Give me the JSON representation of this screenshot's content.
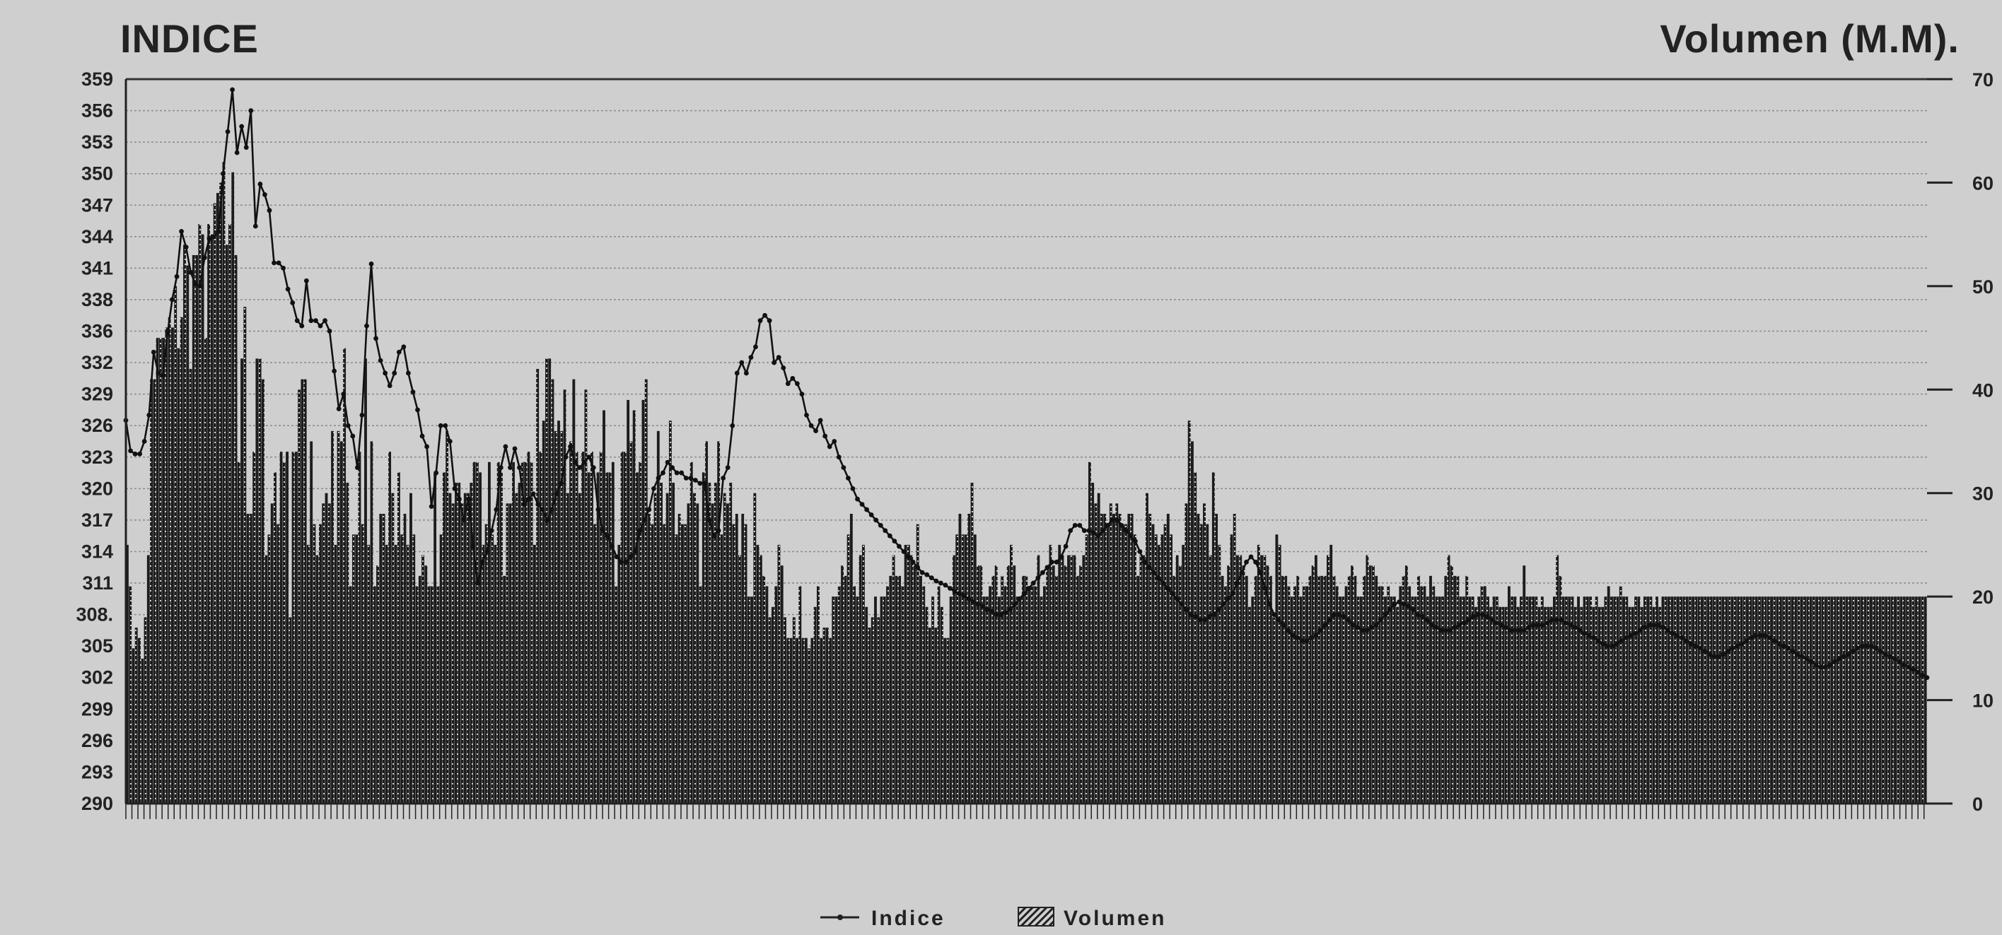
{
  "chart_data": {
    "type": "bar",
    "title_left": "INDICE",
    "title_right": "Volumen (M.M).",
    "left_axis": {
      "ylim": [
        290,
        359
      ],
      "ticks": [
        "290",
        "293",
        "296",
        "299",
        "302",
        "305",
        "308.",
        "311",
        "314",
        "317",
        "320",
        "323",
        "326",
        "329",
        "332",
        "336",
        "338",
        "341",
        "344",
        "347",
        "350",
        "353",
        "356",
        "359"
      ]
    },
    "right_axis": {
      "ylim": [
        0,
        70
      ],
      "ticks": [
        "0",
        "10",
        "20",
        "30",
        "40",
        "50",
        "60",
        "70"
      ]
    },
    "grid": true,
    "legend": {
      "placement": "bottom-center",
      "line_label": "Indice",
      "bar_label": "Volumen"
    },
    "series": [
      {
        "name": "Volumen",
        "kind": "bar",
        "axis": "right",
        "values": [
          25,
          21,
          15,
          17,
          16,
          14,
          18,
          24,
          41,
          41,
          45,
          45,
          45,
          46,
          47,
          46,
          50,
          44,
          47,
          54,
          52,
          42,
          53,
          53,
          56,
          55,
          45,
          56,
          55,
          58,
          59,
          60,
          62,
          54,
          56,
          61,
          53,
          33,
          43,
          48,
          28,
          28,
          34,
          43,
          43,
          41,
          24,
          26,
          29,
          32,
          27,
          34,
          33,
          34,
          18,
          34,
          34,
          40,
          41,
          41,
          25,
          35,
          27,
          24,
          27,
          29,
          30,
          29,
          36,
          25,
          36,
          35,
          44,
          31,
          21,
          26,
          26,
          34,
          27,
          43,
          25,
          35,
          21,
          23,
          28,
          28,
          25,
          34,
          30,
          25,
          32,
          26,
          28,
          25,
          30,
          26,
          21,
          22,
          24,
          23,
          21,
          21,
          32,
          21,
          26,
          32,
          36,
          30,
          29,
          31,
          31,
          29,
          30,
          30,
          31,
          33,
          33,
          32,
          25,
          27,
          33,
          26,
          25,
          33,
          32,
          22,
          29,
          29,
          33,
          30,
          31,
          33,
          33,
          34,
          33,
          25,
          42,
          34,
          37,
          43,
          43,
          41,
          36,
          37,
          36,
          40,
          30,
          35,
          41,
          34,
          30,
          34,
          40,
          32,
          34,
          27,
          32,
          34,
          38,
          32,
          32,
          33,
          21,
          25,
          34,
          34,
          39,
          35,
          38,
          32,
          33,
          39,
          41,
          28,
          27,
          30,
          36,
          31,
          27,
          30,
          37,
          31,
          26,
          28,
          27,
          27,
          29,
          33,
          30,
          29,
          21,
          32,
          35,
          31,
          29,
          31,
          35,
          26,
          30,
          29,
          31,
          27,
          28,
          24,
          28,
          27,
          20,
          20,
          30,
          25,
          24,
          22,
          21,
          18,
          19,
          21,
          25,
          23,
          18,
          16,
          16,
          18,
          16,
          21,
          16,
          16,
          15,
          16,
          19,
          21,
          16,
          17,
          17,
          16,
          20,
          20,
          21,
          23,
          22,
          26,
          28,
          21,
          20,
          24,
          25,
          19,
          17,
          18,
          20,
          18,
          20,
          20,
          21,
          22,
          24,
          22,
          22,
          21,
          25,
          25,
          24,
          23,
          27,
          22,
          21,
          19,
          17,
          20,
          17,
          21,
          19,
          16,
          16,
          20,
          24,
          26,
          28,
          26,
          26,
          28,
          31,
          26,
          23,
          23,
          20,
          20,
          21,
          22,
          23,
          20,
          22,
          21,
          23,
          25,
          23,
          20,
          20,
          22,
          22,
          21,
          21,
          21,
          24,
          20,
          21,
          23,
          25,
          23,
          22,
          25,
          24,
          23,
          24,
          24,
          24,
          22,
          23,
          24,
          26,
          33,
          31,
          29,
          30,
          28,
          28,
          27,
          29,
          28,
          29,
          28,
          27,
          27,
          28,
          28,
          26,
          22,
          24,
          24,
          30,
          28,
          27,
          26,
          25,
          26,
          27,
          28,
          26,
          22,
          24,
          23,
          25,
          29,
          37,
          35,
          32,
          28,
          27,
          29,
          27,
          24,
          32,
          28,
          25,
          22,
          21,
          23,
          26,
          28,
          24,
          24,
          23,
          22,
          19,
          20,
          22,
          25,
          24,
          24,
          23,
          22,
          18,
          26,
          25,
          22,
          22,
          21,
          20,
          21,
          22,
          20,
          21,
          21,
          22,
          23,
          24,
          22,
          22,
          22,
          24,
          25,
          22,
          21,
          20,
          20,
          21,
          22,
          23,
          22,
          20,
          20,
          22,
          24,
          23,
          23,
          22,
          21,
          21,
          20,
          21,
          20,
          20,
          19,
          21,
          22,
          23,
          21,
          20,
          20,
          22,
          21,
          21,
          20,
          22,
          21,
          20,
          20,
          20,
          22,
          24,
          23,
          22,
          22,
          20,
          20,
          22,
          20,
          20,
          19,
          20,
          21,
          21,
          20,
          19,
          20,
          20,
          19,
          19,
          19,
          21,
          20,
          20,
          19,
          20,
          23,
          20,
          20,
          20,
          20,
          19,
          20,
          19,
          19,
          19,
          20,
          24,
          22,
          20,
          20,
          20,
          20,
          19,
          20,
          19,
          20,
          20,
          20,
          19,
          20,
          19,
          19,
          20,
          21,
          20,
          20,
          20,
          21,
          20,
          20,
          19,
          19,
          20,
          20,
          19,
          20,
          20,
          20,
          19,
          20,
          19,
          20,
          20,
          20,
          20,
          20,
          20,
          20,
          20,
          20,
          20,
          20,
          20,
          20,
          20,
          20,
          20,
          20,
          20,
          20,
          20,
          20,
          20,
          20,
          20,
          20,
          20,
          20,
          20,
          20,
          20,
          20,
          20,
          20,
          20,
          20,
          20,
          20,
          20,
          20,
          20,
          20,
          20,
          20,
          20,
          20,
          20,
          20,
          20,
          20,
          20,
          20,
          20,
          20,
          20,
          20,
          20,
          20,
          20,
          20,
          20,
          20,
          20,
          20,
          20,
          20,
          20,
          20,
          20,
          20,
          20,
          20,
          20,
          20,
          20,
          20,
          20,
          20,
          20,
          20,
          20,
          20,
          20,
          20,
          20,
          20,
          20,
          20,
          20
        ]
      },
      {
        "name": "Indice",
        "kind": "line",
        "axis": "left",
        "values": [
          326.5,
          323.6,
          323.3,
          323.3,
          324.5,
          327.0,
          333.0,
          331.0,
          330.8,
          334.8,
          338.0,
          340.2,
          344.5,
          343.0,
          340.6,
          339.5,
          339.3,
          342.0,
          343.8,
          344.0,
          344.5,
          350.0,
          354.0,
          358.0,
          352.0,
          354.5,
          352.5,
          356.0,
          345.0,
          349.0,
          348.0,
          346.5,
          341.5,
          341.5,
          341.0,
          339.0,
          337.7,
          336.0,
          335.5,
          339.8,
          336.0,
          336.0,
          335.5,
          336.0,
          335.0,
          331.2,
          327.6,
          329.0,
          326.0,
          325.0,
          322.0,
          327.0,
          335.5,
          341.4,
          334.3,
          332.2,
          331.0,
          329.8,
          331.0,
          333.0,
          333.5,
          331.0,
          329.2,
          327.5,
          325.0,
          324.0,
          318.3,
          321.5,
          326.0,
          326.0,
          324.5,
          320.0,
          319.0,
          317.0,
          319.0,
          314.5,
          311.0,
          313.0,
          314.0,
          316.0,
          318.0,
          322.0,
          324.0,
          322.0,
          323.8,
          322.0,
          318.5,
          319.0,
          319.5,
          318.5,
          318.0,
          317.0,
          318.0,
          319.5,
          320.5,
          323.0,
          324.0,
          322.5,
          322.0,
          322.5,
          323.0,
          322.0,
          318.0,
          316.0,
          315.5,
          314.5,
          313.5,
          313.0,
          313.0,
          313.5,
          314.0,
          316.0,
          317.0,
          318.0,
          320.0,
          321.0,
          321.5,
          322.5,
          322.0,
          321.5,
          321.5,
          321.0,
          321.0,
          320.8,
          320.5,
          320.5,
          317.0,
          315.5,
          316.0,
          321.0,
          322.0,
          326.0,
          331.0,
          332.0,
          331.0,
          332.5,
          333.5,
          336.0,
          336.5,
          336.0,
          332.0,
          332.5,
          331.5,
          330.0,
          330.5,
          330.0,
          329.0,
          327.0,
          326.0,
          325.5,
          326.5,
          325.0,
          324.0,
          324.5,
          323.0,
          322.0,
          321.0,
          320.0,
          319.0,
          318.5,
          318.0,
          317.5,
          317.0,
          316.5,
          316.0,
          315.5,
          315.0,
          314.5,
          314.0,
          313.5,
          313.0,
          312.5,
          312.0,
          311.8,
          311.5,
          311.2,
          311.0,
          310.8,
          310.5,
          310.2,
          310.0,
          309.8,
          309.5,
          309.2,
          309.0,
          308.8,
          308.5,
          308.3,
          308.0,
          308.0,
          308.2,
          308.5,
          309.0,
          309.5,
          310.0,
          310.5,
          311.0,
          311.5,
          312.0,
          312.5,
          313.0,
          313.0,
          313.5,
          314.5,
          316.0,
          316.5,
          316.5,
          316.0,
          316.0,
          315.8,
          315.5,
          316.0,
          316.5,
          317.0,
          317.0,
          316.5,
          316.0,
          315.5,
          315.0,
          314.0,
          313.0,
          312.5,
          312.0,
          311.5,
          311.0,
          310.5,
          310.0,
          309.5,
          309.0,
          308.5,
          308.0,
          307.8,
          307.5,
          307.5,
          307.8,
          308.0,
          308.5,
          309.0,
          309.5,
          310.0,
          311.0,
          312.0,
          313.0,
          313.5,
          313.0,
          312.0,
          310.5,
          309.0,
          308.0,
          307.5,
          307.0,
          306.5,
          306.0,
          305.8,
          305.5,
          305.5,
          305.8,
          306.0,
          306.5,
          307.0,
          307.5,
          308.0,
          308.0,
          307.8,
          307.5,
          307.0,
          306.8,
          306.5,
          306.5,
          306.8,
          307.0,
          307.5,
          308.0,
          308.5,
          309.0,
          309.2,
          309.0,
          308.8,
          308.5,
          308.0,
          307.8,
          307.5,
          307.0,
          306.8,
          306.5,
          306.5,
          306.5,
          306.8,
          307.0,
          307.2,
          307.5,
          307.8,
          308.0,
          308.0,
          307.8,
          307.5,
          307.2,
          307.0,
          306.8,
          306.5,
          306.5,
          306.5,
          306.5,
          306.8,
          307.0,
          307.0,
          307.0,
          307.2,
          307.5,
          307.5,
          307.5,
          307.2,
          307.0,
          306.8,
          306.5,
          306.2,
          306.0,
          305.8,
          305.5,
          305.2,
          305.0,
          305.0,
          305.2,
          305.5,
          305.8,
          306.0,
          306.2,
          306.5,
          306.8,
          307.0,
          307.0,
          307.0,
          306.8,
          306.5,
          306.2,
          306.0,
          305.8,
          305.5,
          305.2,
          305.0,
          304.8,
          304.5,
          304.2,
          304.0,
          304.0,
          304.2,
          304.5,
          304.8,
          305.0,
          305.2,
          305.5,
          305.8,
          306.0,
          306.0,
          306.0,
          305.8,
          305.5,
          305.2,
          305.0,
          304.8,
          304.5,
          304.2,
          304.0,
          303.8,
          303.5,
          303.2,
          303.0,
          303.0,
          303.2,
          303.5,
          303.8,
          304.0,
          304.2,
          304.5,
          304.8,
          305.0,
          305.0,
          305.0,
          304.8,
          304.5,
          304.2,
          304.0,
          303.8,
          303.5,
          303.2,
          303.0,
          302.8,
          302.5,
          302.2,
          302.0
        ]
      }
    ]
  }
}
